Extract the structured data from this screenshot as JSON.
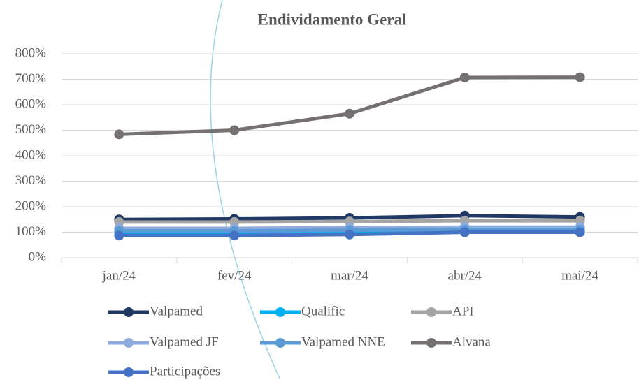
{
  "chart_data": {
    "type": "line",
    "title": "Endividamento Geral",
    "categories": [
      "jan/24",
      "fev/24",
      "mar/24",
      "abr/24",
      "mai/24"
    ],
    "series": [
      {
        "name": "Valpamed",
        "color": "#1f3864",
        "values": [
          150,
          152,
          156,
          165,
          160
        ]
      },
      {
        "name": "Qualific",
        "color": "#00b0f0",
        "values": [
          100,
          100,
          103,
          105,
          105
        ]
      },
      {
        "name": "API",
        "color": "#a5a5a5",
        "values": [
          140,
          140,
          142,
          145,
          145
        ]
      },
      {
        "name": "Valpamed JF",
        "color": "#8faadc",
        "values": [
          115,
          115,
          118,
          120,
          120
        ]
      },
      {
        "name": "Valpamed NNE",
        "color": "#5b9bd5",
        "values": [
          105,
          105,
          108,
          110,
          110
        ]
      },
      {
        "name": "Alvana",
        "color": "#767171",
        "values": [
          484,
          500,
          565,
          707,
          708
        ]
      },
      {
        "name": "Participações",
        "color": "#4472c4",
        "values": [
          87,
          87,
          91,
          100,
          100
        ]
      }
    ],
    "ylim": [
      0,
      800
    ],
    "yticks": [
      {
        "value": 0,
        "label": "0%"
      },
      {
        "value": 100,
        "label": "100%"
      },
      {
        "value": 200,
        "label": "200%"
      },
      {
        "value": 300,
        "label": "300%"
      },
      {
        "value": 400,
        "label": "400%"
      },
      {
        "value": 500,
        "label": "500%"
      },
      {
        "value": 600,
        "label": "600%"
      },
      {
        "value": 700,
        "label": "700%"
      },
      {
        "value": 800,
        "label": "800%"
      }
    ],
    "grid": true
  }
}
